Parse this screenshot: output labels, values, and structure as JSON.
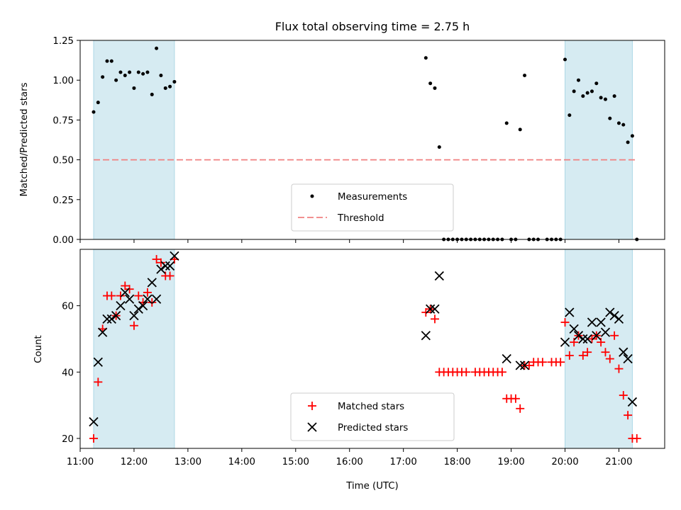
{
  "chart_data": [
    {
      "type": "scatter",
      "title": "Flux total observing time = 2.75 h",
      "xlabel": "",
      "ylabel": "Matched/Predicted stars",
      "xlim": [
        "11:00",
        "21:51"
      ],
      "ylim": [
        0,
        1.25
      ],
      "yticks": [
        "0.00",
        "0.25",
        "0.50",
        "0.75",
        "1.00",
        "1.25"
      ],
      "grid": false,
      "legend": "bottom-center",
      "shaded_intervals": [
        [
          "11:15",
          "12:45"
        ],
        [
          "20:00",
          "21:15"
        ]
      ],
      "shade_color": "#add8e6",
      "threshold": {
        "name": "Threshold",
        "y": 0.5,
        "x_start": "11:15",
        "x_end": "21:20",
        "color": "#f08080"
      },
      "series": [
        {
          "name": "Measurements",
          "marker": "dot",
          "color": "#000000",
          "points": [
            [
              "11:15",
              0.8
            ],
            [
              "11:20",
              0.86
            ],
            [
              "11:25",
              1.02
            ],
            [
              "11:30",
              1.12
            ],
            [
              "11:35",
              1.12
            ],
            [
              "11:40",
              1.0
            ],
            [
              "11:45",
              1.05
            ],
            [
              "11:50",
              1.03
            ],
            [
              "11:55",
              1.05
            ],
            [
              "12:00",
              0.95
            ],
            [
              "12:05",
              1.05
            ],
            [
              "12:10",
              1.04
            ],
            [
              "12:15",
              1.05
            ],
            [
              "12:20",
              0.91
            ],
            [
              "12:25",
              1.2
            ],
            [
              "12:30",
              1.03
            ],
            [
              "12:35",
              0.95
            ],
            [
              "12:40",
              0.96
            ],
            [
              "12:45",
              0.99
            ],
            [
              "17:25",
              1.14
            ],
            [
              "17:30",
              0.98
            ],
            [
              "17:35",
              0.95
            ],
            [
              "17:40",
              0.58
            ],
            [
              "17:45",
              0.0
            ],
            [
              "17:50",
              0.0
            ],
            [
              "17:55",
              0.0
            ],
            [
              "18:00",
              0.0
            ],
            [
              "18:05",
              0.0
            ],
            [
              "18:10",
              0.0
            ],
            [
              "18:15",
              0.0
            ],
            [
              "18:20",
              0.0
            ],
            [
              "18:25",
              0.0
            ],
            [
              "18:30",
              0.0
            ],
            [
              "18:35",
              0.0
            ],
            [
              "18:40",
              0.0
            ],
            [
              "18:45",
              0.0
            ],
            [
              "18:50",
              0.0
            ],
            [
              "18:55",
              0.73
            ],
            [
              "19:00",
              0.0
            ],
            [
              "19:05",
              0.0
            ],
            [
              "19:10",
              0.69
            ],
            [
              "19:15",
              1.03
            ],
            [
              "19:20",
              0.0
            ],
            [
              "19:25",
              0.0
            ],
            [
              "19:30",
              0.0
            ],
            [
              "19:40",
              0.0
            ],
            [
              "19:45",
              0.0
            ],
            [
              "19:50",
              0.0
            ],
            [
              "19:55",
              0.0
            ],
            [
              "20:00",
              1.13
            ],
            [
              "20:05",
              0.78
            ],
            [
              "20:10",
              0.93
            ],
            [
              "20:15",
              1.0
            ],
            [
              "20:20",
              0.9
            ],
            [
              "20:25",
              0.92
            ],
            [
              "20:30",
              0.93
            ],
            [
              "20:35",
              0.98
            ],
            [
              "20:40",
              0.89
            ],
            [
              "20:45",
              0.88
            ],
            [
              "20:50",
              0.76
            ],
            [
              "20:55",
              0.9
            ],
            [
              "21:00",
              0.73
            ],
            [
              "21:05",
              0.72
            ],
            [
              "21:10",
              0.61
            ],
            [
              "21:15",
              0.65
            ],
            [
              "21:20",
              0.0
            ]
          ]
        }
      ]
    },
    {
      "type": "scatter",
      "title": "",
      "xlabel": "Time (UTC)",
      "ylabel": "Count",
      "xlim": [
        "11:00",
        "21:51"
      ],
      "ylim": [
        17,
        77
      ],
      "yticks": [
        "20",
        "40",
        "60"
      ],
      "xticks": [
        "11:00",
        "12:00",
        "13:00",
        "14:00",
        "15:00",
        "16:00",
        "17:00",
        "18:00",
        "19:00",
        "20:00",
        "21:00"
      ],
      "grid": false,
      "legend": "bottom-center",
      "shaded_intervals": [
        [
          "11:15",
          "12:45"
        ],
        [
          "20:00",
          "21:15"
        ]
      ],
      "series": [
        {
          "name": "Matched stars",
          "marker": "plus",
          "color": "#ff0000",
          "points": [
            [
              "11:15",
              20
            ],
            [
              "11:20",
              37
            ],
            [
              "11:25",
              53
            ],
            [
              "11:30",
              63
            ],
            [
              "11:35",
              63
            ],
            [
              "11:40",
              57
            ],
            [
              "11:45",
              63
            ],
            [
              "11:50",
              66
            ],
            [
              "11:55",
              65
            ],
            [
              "12:00",
              54
            ],
            [
              "12:05",
              63
            ],
            [
              "12:10",
              61
            ],
            [
              "12:15",
              64
            ],
            [
              "12:20",
              61
            ],
            [
              "12:25",
              74
            ],
            [
              "12:30",
              73
            ],
            [
              "12:35",
              69
            ],
            [
              "12:40",
              69
            ],
            [
              "12:45",
              74
            ],
            [
              "17:25",
              58
            ],
            [
              "17:30",
              59
            ],
            [
              "17:35",
              56
            ],
            [
              "17:40",
              40
            ],
            [
              "17:45",
              40
            ],
            [
              "17:50",
              40
            ],
            [
              "17:55",
              40
            ],
            [
              "18:00",
              40
            ],
            [
              "18:05",
              40
            ],
            [
              "18:10",
              40
            ],
            [
              "18:20",
              40
            ],
            [
              "18:25",
              40
            ],
            [
              "18:30",
              40
            ],
            [
              "18:35",
              40
            ],
            [
              "18:40",
              40
            ],
            [
              "18:45",
              40
            ],
            [
              "18:50",
              40
            ],
            [
              "18:55",
              32
            ],
            [
              "19:00",
              32
            ],
            [
              "19:05",
              32
            ],
            [
              "19:10",
              29
            ],
            [
              "19:15",
              42
            ],
            [
              "19:20",
              42
            ],
            [
              "19:25",
              43
            ],
            [
              "19:30",
              43
            ],
            [
              "19:35",
              43
            ],
            [
              "19:45",
              43
            ],
            [
              "19:50",
              43
            ],
            [
              "19:55",
              43
            ],
            [
              "20:00",
              55
            ],
            [
              "20:05",
              45
            ],
            [
              "20:10",
              49
            ],
            [
              "20:15",
              51
            ],
            [
              "20:20",
              45
            ],
            [
              "20:25",
              46
            ],
            [
              "20:30",
              50
            ],
            [
              "20:35",
              51
            ],
            [
              "20:40",
              49
            ],
            [
              "20:45",
              46
            ],
            [
              "20:50",
              44
            ],
            [
              "20:55",
              51
            ],
            [
              "21:00",
              41
            ],
            [
              "21:05",
              33
            ],
            [
              "21:10",
              27
            ],
            [
              "21:15",
              20
            ],
            [
              "21:20",
              20
            ]
          ]
        },
        {
          "name": "Predicted stars",
          "marker": "x",
          "color": "#000000",
          "points": [
            [
              "11:15",
              25
            ],
            [
              "11:20",
              43
            ],
            [
              "11:25",
              52
            ],
            [
              "11:30",
              56
            ],
            [
              "11:35",
              56
            ],
            [
              "11:40",
              57
            ],
            [
              "11:45",
              60
            ],
            [
              "11:50",
              64
            ],
            [
              "11:55",
              62
            ],
            [
              "12:00",
              57
            ],
            [
              "12:05",
              59
            ],
            [
              "12:10",
              60
            ],
            [
              "12:15",
              62
            ],
            [
              "12:20",
              67
            ],
            [
              "12:25",
              62
            ],
            [
              "12:30",
              71
            ],
            [
              "12:35",
              72
            ],
            [
              "12:40",
              72
            ],
            [
              "12:45",
              75
            ],
            [
              "17:25",
              51
            ],
            [
              "17:30",
              59
            ],
            [
              "17:35",
              59
            ],
            [
              "17:40",
              69
            ],
            [
              "18:55",
              44
            ],
            [
              "19:10",
              42
            ],
            [
              "19:15",
              42
            ],
            [
              "20:00",
              49
            ],
            [
              "20:05",
              58
            ],
            [
              "20:10",
              53
            ],
            [
              "20:15",
              51
            ],
            [
              "20:20",
              50
            ],
            [
              "20:25",
              50
            ],
            [
              "20:30",
              55
            ],
            [
              "20:35",
              51
            ],
            [
              "20:40",
              55
            ],
            [
              "20:45",
              52
            ],
            [
              "20:50",
              58
            ],
            [
              "20:55",
              57
            ],
            [
              "21:00",
              56
            ],
            [
              "21:05",
              46
            ],
            [
              "21:10",
              44
            ],
            [
              "21:15",
              31
            ]
          ]
        }
      ]
    }
  ]
}
